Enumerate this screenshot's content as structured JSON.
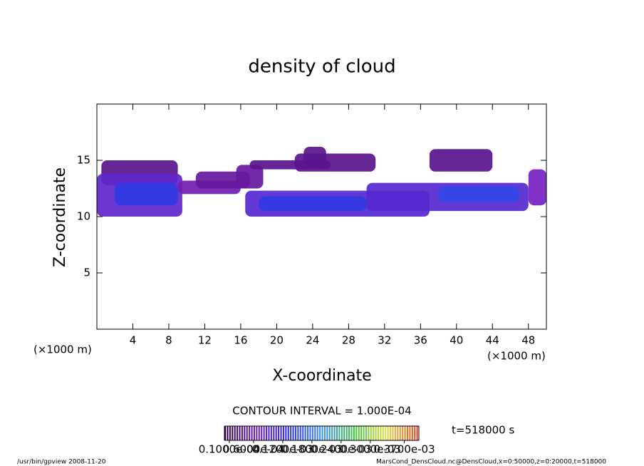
{
  "chart_data": {
    "type": "contour",
    "title": "density of cloud",
    "x_label": "X-coordinate",
    "y_label": "Z-coordinate",
    "x_unit": "(×1000 m)",
    "y_unit": "(×1000 m)",
    "xlim": [
      0,
      50
    ],
    "ylim": [
      0,
      20
    ],
    "xticks": [
      4,
      8,
      12,
      16,
      20,
      24,
      28,
      32,
      36,
      40,
      44,
      48
    ],
    "yticks": [
      5,
      10,
      15
    ],
    "clim": [
      0,
      0.0004
    ],
    "colormap": [
      "#2a0040",
      "#7a20c0",
      "#3030e0",
      "#3c8cff",
      "#40c040",
      "#e0e040",
      "#e04020"
    ],
    "cells": [
      {
        "x": [
          0.5,
          9
        ],
        "z": [
          12.8,
          15
        ],
        "value": 4e-05
      },
      {
        "x": [
          0,
          9.5
        ],
        "z": [
          10,
          13.8
        ],
        "value": 9e-05
      },
      {
        "x": [
          2,
          9
        ],
        "z": [
          11,
          13
        ],
        "value": 0.00014
      },
      {
        "x": [
          9,
          16
        ],
        "z": [
          12,
          13.2
        ],
        "value": 6e-05
      },
      {
        "x": [
          11,
          17
        ],
        "z": [
          12.5,
          14
        ],
        "value": 5e-05
      },
      {
        "x": [
          15.5,
          18.5
        ],
        "z": [
          12.5,
          14.6
        ],
        "value": 5e-05
      },
      {
        "x": [
          16.5,
          37
        ],
        "z": [
          10,
          12.3
        ],
        "value": 0.0001
      },
      {
        "x": [
          18,
          30
        ],
        "z": [
          10.5,
          11.8
        ],
        "value": 0.00014
      },
      {
        "x": [
          30,
          48
        ],
        "z": [
          10.5,
          13
        ],
        "value": 0.0001
      },
      {
        "x": [
          38,
          47
        ],
        "z": [
          11.3,
          12.7
        ],
        "value": 0.00015
      },
      {
        "x": [
          17,
          26
        ],
        "z": [
          14.2,
          15
        ],
        "value": 4e-05
      },
      {
        "x": [
          22,
          31
        ],
        "z": [
          14,
          15.6
        ],
        "value": 4e-05
      },
      {
        "x": [
          23,
          25.5
        ],
        "z": [
          14.5,
          16.2
        ],
        "value": 4e-05
      },
      {
        "x": [
          37,
          44
        ],
        "z": [
          14,
          16
        ],
        "value": 4e-05
      },
      {
        "x": [
          48,
          50
        ],
        "z": [
          11,
          14.2
        ],
        "value": 7e-05
      }
    ],
    "contour_interval": "CONTOUR INTERVAL = 1.000E-04",
    "time_label": "t=518000 s",
    "colorbar_ticks": [
      {
        "value": 1e-05,
        "label": "0.1000e-04"
      },
      {
        "value": 6e-05,
        "label": "0.6000e-04"
      },
      {
        "value": 0.00012,
        "label": "0.1200e-03"
      },
      {
        "value": 0.00018,
        "label": "0.1800e-03"
      },
      {
        "value": 0.00024,
        "label": "0.2400e-03"
      },
      {
        "value": 0.0003,
        "label": "0.3000e-03"
      },
      {
        "value": 0.00037,
        "label": "0.3700e-03"
      }
    ],
    "footer_left": "/usr/bin/gpview   2008-11-20",
    "footer_right": "MarsCond_DensCloud.nc@DensCloud,x=0:50000,z=0:20000,t=518000"
  }
}
